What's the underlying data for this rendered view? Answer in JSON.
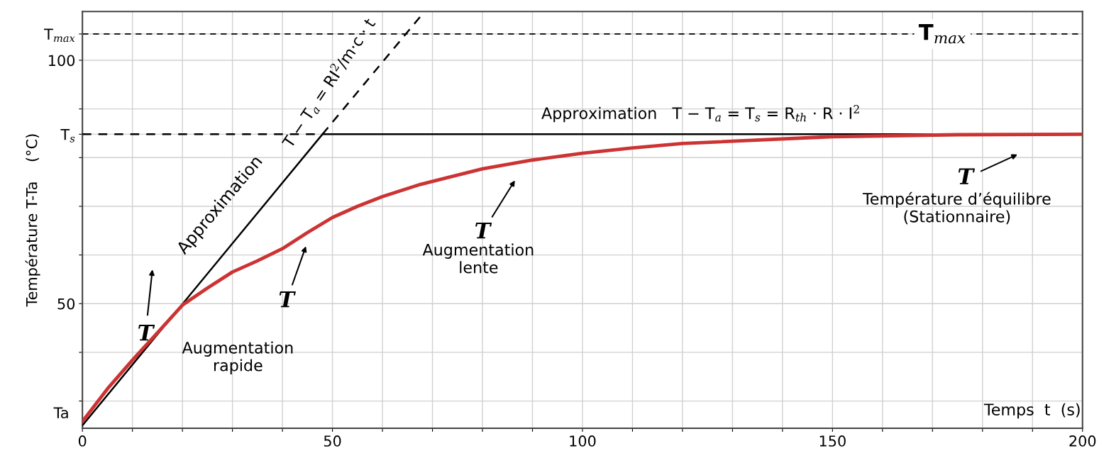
{
  "chart_data": {
    "type": "line",
    "xlabel": "Temps  t  (s)",
    "ylabel": "Température T-Ta    (°C)",
    "xlim": [
      0,
      200
    ],
    "ylim": [
      24.4,
      110
    ],
    "xticks": [
      {
        "value": 0,
        "label": "0"
      },
      {
        "value": 10,
        "label": null
      },
      {
        "value": 20,
        "label": null
      },
      {
        "value": 30,
        "label": null
      },
      {
        "value": 40,
        "label": null
      },
      50,
      {
        "value": 60,
        "label": null
      },
      {
        "value": 70,
        "label": null
      },
      {
        "value": 80,
        "label": null
      },
      {
        "value": 90,
        "label": null
      },
      100,
      {
        "value": 110,
        "label": null
      },
      {
        "value": 120,
        "label": null
      },
      {
        "value": 130,
        "label": null
      },
      {
        "value": 140,
        "label": null
      },
      150,
      {
        "value": 160,
        "label": null
      },
      {
        "value": 170,
        "label": null
      },
      {
        "value": 180,
        "label": null
      },
      {
        "value": 190,
        "label": null
      },
      200
    ],
    "yticks": [
      {
        "value": 30,
        "label": null
      },
      {
        "value": 40,
        "label": null
      },
      50,
      {
        "value": 60,
        "label": null
      },
      {
        "value": 70,
        "label": null
      },
      {
        "value": 80,
        "label": null
      },
      {
        "value": 84.8,
        "label": "T$_{s}$"
      },
      {
        "value": 90,
        "label": null
      },
      100,
      {
        "value": 105.4,
        "label": "T$_{max}$"
      }
    ],
    "grid": true,
    "marker": "none",
    "series": [
      {
        "color": "#cc3333",
        "line_style": "solid",
        "x": [
          0,
          5,
          10,
          15,
          20,
          25,
          30,
          35,
          40,
          45,
          50,
          55,
          60,
          67.6,
          80,
          90,
          100,
          110,
          120,
          150,
          175,
          200
        ],
        "values": [
          25.8,
          32.5,
          38.4,
          44,
          49.7,
          53.2,
          56.5,
          58.8,
          61.3,
          64.6,
          67.7,
          70,
          72,
          74.5,
          77.7,
          79.5,
          80.9,
          82,
          82.9,
          84.3,
          84.7,
          84.8
        ]
      },
      {
        "color": "#000000",
        "line_style": "solid",
        "x": [
          0,
          48,
          200
        ],
        "values": [
          25,
          84.8,
          84.8
        ]
      },
      {
        "color": "#000000",
        "line_style": "dashed",
        "x": [
          48,
          68
        ],
        "values": [
          84.8,
          109.5
        ]
      },
      {
        "color": "#000000",
        "line_style": "dashed",
        "x": [
          0,
          48
        ],
        "values": [
          84.8,
          84.8
        ]
      }
    ],
    "ref_lines": [
      {
        "axis": "y",
        "value": 105.4,
        "label": "T$_{max}$",
        "line_style": "dashed",
        "color": "#000000"
      }
    ],
    "annotations": [
      "Approximation",
      "T − T$_{a}$ = RI$^{2}$/m·c · t",
      "Approximation   T − T$_{a}$ = T$_{s}$ = R$_{th}$ · R · I$^{2}$",
      "Augmentation\nrapide",
      "Augmentation\nlente",
      "Température d’équilibre\n(Stationnaire)",
      "T",
      "T",
      "T",
      "T",
      "Ta"
    ]
  }
}
